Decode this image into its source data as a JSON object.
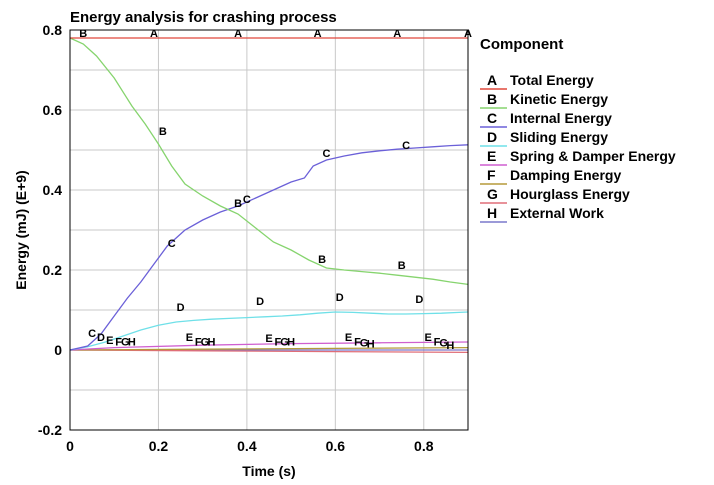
{
  "chart_data": {
    "type": "line",
    "title": "Energy analysis for crashing process",
    "xlabel": "Time (s)",
    "ylabel": "Energy (mJ) (E+9)",
    "xlim": [
      0,
      0.9
    ],
    "ylim": [
      -0.2,
      0.8
    ],
    "x_ticks": [
      0,
      0.2,
      0.4,
      0.6,
      0.8
    ],
    "x_tick_labels": [
      "0",
      "0.2",
      "0.4",
      "0.6",
      "0.8"
    ],
    "y_ticks": [
      -0.2,
      0,
      0.2,
      0.4,
      0.6,
      0.8
    ],
    "y_tick_labels": [
      "-0.2",
      "0",
      "0.2",
      "0.4",
      "0.6",
      "0.8"
    ],
    "grid": true,
    "legend": {
      "title": "Component",
      "position": "right"
    },
    "series": [
      {
        "id": "A",
        "name": "Total Energy",
        "color": "#e0483c",
        "x": [
          0,
          0.9
        ],
        "y": [
          0.78,
          0.78
        ],
        "markers": [
          [
            0.19,
            0.78
          ],
          [
            0.38,
            0.78
          ],
          [
            0.56,
            0.78
          ],
          [
            0.74,
            0.78
          ],
          [
            0.9,
            0.78
          ]
        ]
      },
      {
        "id": "B",
        "name": "Kinetic Energy",
        "color": "#86d46e",
        "x": [
          0,
          0.03,
          0.06,
          0.1,
          0.14,
          0.17,
          0.2,
          0.23,
          0.26,
          0.3,
          0.34,
          0.38,
          0.42,
          0.46,
          0.5,
          0.54,
          0.58,
          0.62,
          0.66,
          0.7,
          0.74,
          0.78,
          0.82,
          0.86,
          0.9
        ],
        "y": [
          0.78,
          0.765,
          0.735,
          0.68,
          0.61,
          0.565,
          0.515,
          0.46,
          0.415,
          0.385,
          0.36,
          0.34,
          0.305,
          0.27,
          0.25,
          0.225,
          0.205,
          0.2,
          0.196,
          0.192,
          0.187,
          0.182,
          0.177,
          0.17,
          0.164
        ],
        "markers": [
          [
            0.03,
            0.78
          ],
          [
            0.21,
            0.535
          ],
          [
            0.38,
            0.355
          ],
          [
            0.57,
            0.215
          ],
          [
            0.75,
            0.2
          ]
        ]
      },
      {
        "id": "C",
        "name": "Internal Energy",
        "color": "#6b60d8",
        "x": [
          0,
          0.04,
          0.07,
          0.1,
          0.13,
          0.16,
          0.19,
          0.22,
          0.26,
          0.3,
          0.34,
          0.38,
          0.42,
          0.46,
          0.5,
          0.53,
          0.55,
          0.58,
          0.62,
          0.66,
          0.7,
          0.74,
          0.78,
          0.82,
          0.86,
          0.9
        ],
        "y": [
          0,
          0.01,
          0.04,
          0.085,
          0.13,
          0.17,
          0.215,
          0.26,
          0.3,
          0.325,
          0.345,
          0.36,
          0.38,
          0.4,
          0.42,
          0.43,
          0.46,
          0.475,
          0.485,
          0.493,
          0.498,
          0.502,
          0.505,
          0.508,
          0.511,
          0.513
        ],
        "markers": [
          [
            0.05,
            0.03
          ],
          [
            0.23,
            0.255
          ],
          [
            0.4,
            0.365
          ],
          [
            0.58,
            0.48
          ],
          [
            0.76,
            0.5
          ]
        ]
      },
      {
        "id": "D",
        "name": "Sliding Energy",
        "color": "#6fe0e8",
        "x": [
          0,
          0.04,
          0.08,
          0.12,
          0.16,
          0.2,
          0.24,
          0.28,
          0.32,
          0.36,
          0.4,
          0.44,
          0.48,
          0.52,
          0.56,
          0.6,
          0.64,
          0.68,
          0.72,
          0.76,
          0.8,
          0.84,
          0.88,
          0.9
        ],
        "y": [
          0,
          0.008,
          0.02,
          0.035,
          0.05,
          0.062,
          0.07,
          0.074,
          0.077,
          0.079,
          0.081,
          0.083,
          0.085,
          0.088,
          0.092,
          0.095,
          0.094,
          0.092,
          0.09,
          0.09,
          0.091,
          0.092,
          0.094,
          0.095
        ],
        "markers": [
          [
            0.07,
            0.02
          ],
          [
            0.25,
            0.095
          ],
          [
            0.43,
            0.11
          ],
          [
            0.61,
            0.12
          ],
          [
            0.79,
            0.115
          ]
        ]
      },
      {
        "id": "E",
        "name": "Spring & Damper Energy",
        "color": "#cf5fd0",
        "x": [
          0,
          0.1,
          0.3,
          0.5,
          0.7,
          0.9
        ],
        "y": [
          0,
          0.006,
          0.012,
          0.016,
          0.018,
          0.02
        ],
        "markers": [
          [
            0.09,
            0.012
          ],
          [
            0.27,
            0.02
          ],
          [
            0.45,
            0.018
          ],
          [
            0.63,
            0.02
          ],
          [
            0.81,
            0.02
          ]
        ]
      },
      {
        "id": "F",
        "name": "Damping Energy",
        "color": "#b59a3a",
        "x": [
          0,
          0.3,
          0.6,
          0.9
        ],
        "y": [
          0,
          0.002,
          0.004,
          0.006
        ],
        "markers": [
          [
            0.11,
            0.009
          ],
          [
            0.29,
            0.009
          ],
          [
            0.47,
            0.009
          ],
          [
            0.65,
            0.009
          ],
          [
            0.83,
            0.009
          ]
        ]
      },
      {
        "id": "G",
        "name": "Hourglass Energy",
        "color": "#e06e78",
        "x": [
          0,
          0.3,
          0.6,
          0.9
        ],
        "y": [
          0,
          -0.002,
          -0.004,
          -0.006
        ],
        "markers": [
          [
            0.125,
            0.009
          ],
          [
            0.305,
            0.009
          ],
          [
            0.485,
            0.009
          ],
          [
            0.665,
            0.006
          ],
          [
            0.845,
            0.006
          ]
        ]
      },
      {
        "id": "H",
        "name": "External Work",
        "color": "#7a78cc",
        "x": [
          0,
          0.9
        ],
        "y": [
          0,
          0
        ],
        "markers": [
          [
            0.14,
            0.009
          ],
          [
            0.32,
            0.009
          ],
          [
            0.5,
            0.009
          ],
          [
            0.68,
            0.004
          ],
          [
            0.86,
            0.0
          ]
        ]
      }
    ]
  }
}
